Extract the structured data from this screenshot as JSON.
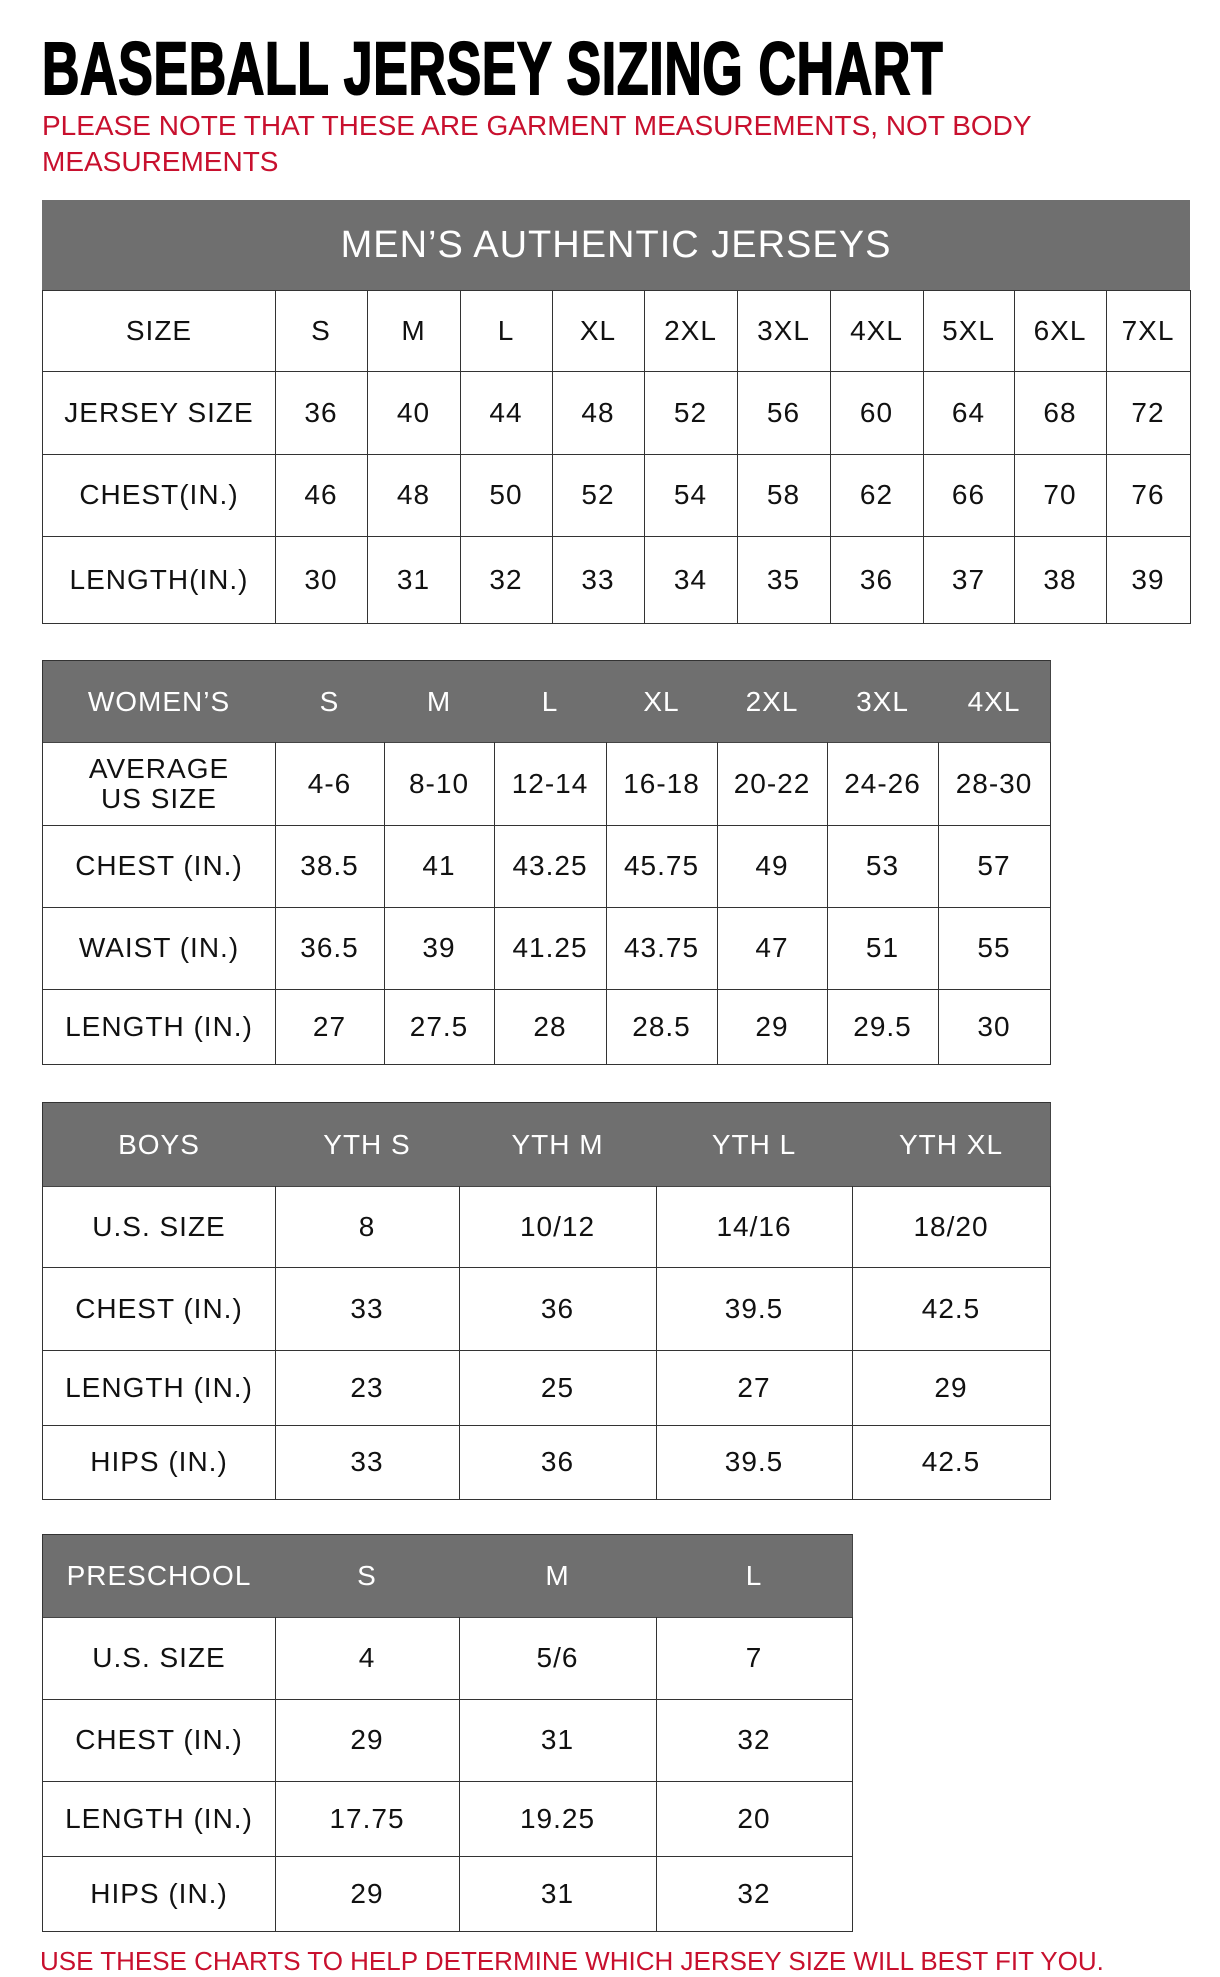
{
  "title": "BASEBALL JERSEY SIZING CHART",
  "note": "PLEASE NOTE THAT THESE ARE GARMENT MEASUREMENTS, NOT BODY MEASUREMENTS",
  "footer": "USE THESE CHARTS TO HELP DETERMINE WHICH JERSEY SIZE WILL BEST FIT YOU.",
  "colors": {
    "header_bg": "#6f6f6f",
    "accent_red": "#c8102e"
  },
  "tables": {
    "mens": {
      "title": "MEN’S AUTHENTIC JERSEYS",
      "header": [
        "SIZE",
        "S",
        "M",
        "L",
        "XL",
        "2XL",
        "3XL",
        "4XL",
        "5XL",
        "6XL",
        "7XL"
      ],
      "rows": [
        [
          "JERSEY SIZE",
          "36",
          "40",
          "44",
          "48",
          "52",
          "56",
          "60",
          "64",
          "68",
          "72"
        ],
        [
          "CHEST(IN.)",
          "46",
          "48",
          "50",
          "52",
          "54",
          "58",
          "62",
          "66",
          "70",
          "76"
        ],
        [
          "LENGTH(IN.)",
          "30",
          "31",
          "32",
          "33",
          "34",
          "35",
          "36",
          "37",
          "38",
          "39"
        ]
      ]
    },
    "womens": {
      "header": [
        "WOMEN’S",
        "S",
        "M",
        "L",
        "XL",
        "2XL",
        "3XL",
        "4XL"
      ],
      "rows": [
        [
          "AVERAGE US SIZE",
          "4-6",
          "8-10",
          "12-14",
          "16-18",
          "20-22",
          "24-26",
          "28-30"
        ],
        [
          "CHEST (IN.)",
          "38.5",
          "41",
          "43.25",
          "45.75",
          "49",
          "53",
          "57"
        ],
        [
          "WAIST (IN.)",
          "36.5",
          "39",
          "41.25",
          "43.75",
          "47",
          "51",
          "55"
        ],
        [
          "LENGTH (IN.)",
          "27",
          "27.5",
          "28",
          "28.5",
          "29",
          "29.5",
          "30"
        ]
      ]
    },
    "boys": {
      "header": [
        "BOYS",
        "YTH S",
        "YTH M",
        "YTH L",
        "YTH XL"
      ],
      "rows": [
        [
          "U.S. SIZE",
          "8",
          "10/12",
          "14/16",
          "18/20"
        ],
        [
          "CHEST (IN.)",
          "33",
          "36",
          "39.5",
          "42.5"
        ],
        [
          "LENGTH (IN.)",
          "23",
          "25",
          "27",
          "29"
        ],
        [
          "HIPS (IN.)",
          "33",
          "36",
          "39.5",
          "42.5"
        ]
      ]
    },
    "preschool": {
      "header": [
        "PRESCHOOL",
        "S",
        "M",
        "L"
      ],
      "rows": [
        [
          "U.S. SIZE",
          "4",
          "5/6",
          "7"
        ],
        [
          "CHEST (IN.)",
          "29",
          "31",
          "32"
        ],
        [
          "LENGTH (IN.)",
          "17.75",
          "19.25",
          "20"
        ],
        [
          "HIPS (IN.)",
          "29",
          "31",
          "32"
        ]
      ]
    }
  }
}
